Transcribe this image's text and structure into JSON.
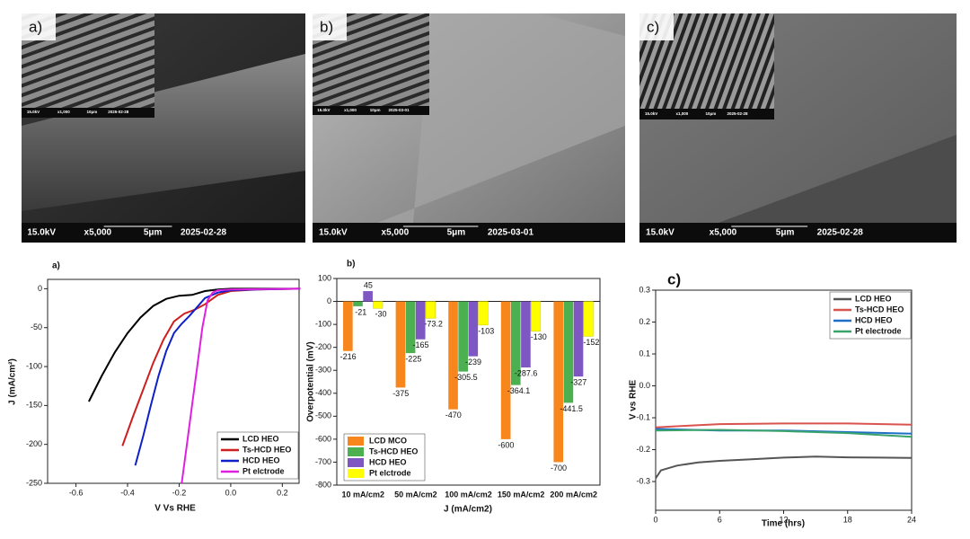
{
  "images": [
    {
      "label": "a)",
      "bar": [
        "15.0kV",
        "x5,000",
        "5μm",
        "2025-02-28"
      ],
      "inset_bar": [
        "15.0kV",
        "x1,000",
        "10μm",
        "2025-02-28"
      ]
    },
    {
      "label": "b)",
      "bar": [
        "15.0kV",
        "x5,000",
        "5μm",
        "2025-03-01"
      ],
      "inset_bar": [
        "15.0kV",
        "x1,000",
        "10μm",
        "2025-03-01"
      ]
    },
    {
      "label": "c)",
      "bar": [
        "15.0kV",
        "x5,000",
        "5μm",
        "2025-02-28"
      ],
      "inset_bar": [
        "15.0kV",
        "x1,000",
        "10μm",
        "2025-02-28"
      ]
    }
  ],
  "chart_data": [
    {
      "type": "line",
      "title": "a)",
      "x_label": "V Vs RHE",
      "y_label": "J (mA/cm²)",
      "xlim": [
        -0.71,
        0.265
      ],
      "xticks": [
        -0.6,
        -0.4,
        -0.2,
        {
          "value": 0,
          "label": "0.0"
        },
        0.2
      ],
      "ylim": [
        -250,
        12
      ],
      "yticks": [
        0,
        -50,
        -100,
        -150,
        -200,
        -250
      ],
      "legend": "lower right",
      "series": [
        {
          "name": "LCD HEO",
          "color": "#000000",
          "x": [
            -0.55,
            -0.5,
            -0.45,
            -0.4,
            -0.35,
            -0.3,
            -0.25,
            -0.2,
            -0.15,
            -0.1,
            -0.05,
            0,
            0.1,
            0.27
          ],
          "values": [
            -145,
            -112,
            -82,
            -57,
            -37,
            -22,
            -13,
            -9,
            -8,
            -3,
            -1,
            0,
            0,
            0
          ]
        },
        {
          "name": "Ts-HCD HEO",
          "color": "#cc1f1f",
          "x": [
            -0.42,
            -0.38,
            -0.34,
            -0.3,
            -0.26,
            -0.22,
            -0.18,
            -0.14,
            -0.1,
            -0.05,
            0,
            0.1,
            0.27
          ],
          "values": [
            -202,
            -165,
            -130,
            -95,
            -65,
            -42,
            -32,
            -27,
            -20,
            -8,
            -3,
            -1,
            0
          ]
        },
        {
          "name": "HCD HEO",
          "color": "#1020c8",
          "x": [
            -0.37,
            -0.34,
            -0.31,
            -0.28,
            -0.25,
            -0.22,
            -0.19,
            -0.16,
            -0.1,
            -0.05,
            0,
            0.1,
            0.27
          ],
          "values": [
            -227,
            -190,
            -150,
            -112,
            -80,
            -57,
            -45,
            -35,
            -12,
            -5,
            -2,
            -1,
            0
          ]
        },
        {
          "name": "Pt elctrode",
          "color": "#e020e0",
          "x": [
            -0.19,
            -0.17,
            -0.15,
            -0.13,
            -0.11,
            -0.09,
            -0.07,
            -0.05,
            0,
            0.27
          ],
          "values": [
            -250,
            -200,
            -150,
            -100,
            -50,
            -15,
            -5,
            -2,
            -1,
            0
          ]
        }
      ]
    },
    {
      "type": "bar",
      "title": "b)",
      "x_label": "J (mA/cm2)",
      "y_label": "Overpotential (mV)",
      "categories": [
        "10 mA/cm2",
        "50 mA/cm2",
        "100 mA/cm2",
        "150 mA/cm2",
        "200 mA/cm2"
      ],
      "ylim": [
        -800,
        100
      ],
      "yticks": [
        100,
        0,
        -100,
        -200,
        -300,
        -400,
        -500,
        -600,
        -700,
        -800
      ],
      "legend": "lower left",
      "series": [
        {
          "name": "LCD MCO",
          "color": "#f7861c",
          "values": [
            -216,
            -375,
            -470,
            -600,
            -700
          ]
        },
        {
          "name": "Ts-HCD HEO",
          "color": "#4caf50",
          "values": [
            -21,
            -225,
            -305.5,
            -364.1,
            -441.5
          ]
        },
        {
          "name": "HCD HEO",
          "color": "#7e57c2",
          "values": [
            45,
            -165,
            -239,
            -287.6,
            -327
          ]
        },
        {
          "name": "Pt elctrode",
          "color": "#ffff00",
          "values": [
            -30,
            -73.2,
            -103,
            -130,
            -152
          ]
        }
      ]
    },
    {
      "type": "line",
      "title": "c)",
      "x_label": "Time (hrs)",
      "y_label": "V vs RHE",
      "xlim": [
        0,
        24
      ],
      "xticks": [
        0,
        6,
        12,
        18,
        24
      ],
      "ylim": [
        -0.39,
        0.3
      ],
      "yticks": [
        0.3,
        0.2,
        0.1,
        {
          "value": 0,
          "label": "0.0"
        },
        -0.1,
        -0.2,
        -0.3
      ],
      "legend": "upper right",
      "series": [
        {
          "name": "LCD HEO",
          "color": "#555555",
          "x": [
            0,
            0.5,
            2,
            4,
            6,
            9,
            12,
            15,
            18,
            21,
            24
          ],
          "values": [
            -0.29,
            -0.265,
            -0.25,
            -0.24,
            -0.235,
            -0.23,
            -0.225,
            -0.222,
            -0.224,
            -0.225,
            -0.226
          ]
        },
        {
          "name": "Ts-HCD HEO",
          "color": "#d9534f",
          "x": [
            0,
            3,
            6,
            12,
            18,
            24
          ],
          "values": [
            -0.13,
            -0.125,
            -0.12,
            -0.118,
            -0.118,
            -0.122
          ]
        },
        {
          "name": "HCD HEO",
          "color": "#1f6fc8",
          "x": [
            0,
            6,
            12,
            18,
            24
          ],
          "values": [
            -0.135,
            -0.14,
            -0.14,
            -0.145,
            -0.15
          ]
        },
        {
          "name": "Pt electrode",
          "color": "#3aa36a",
          "x": [
            0,
            6,
            12,
            18,
            24
          ],
          "values": [
            -0.14,
            -0.138,
            -0.142,
            -0.148,
            -0.16
          ]
        }
      ]
    }
  ]
}
